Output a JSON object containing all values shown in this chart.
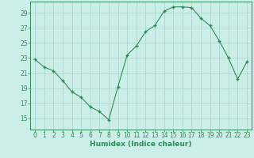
{
  "x": [
    0,
    1,
    2,
    3,
    4,
    5,
    6,
    7,
    8,
    9,
    10,
    11,
    12,
    13,
    14,
    15,
    16,
    17,
    18,
    19,
    20,
    21,
    22,
    23
  ],
  "y": [
    22.8,
    21.8,
    21.3,
    20.0,
    18.5,
    17.8,
    16.5,
    15.9,
    14.8,
    19.2,
    23.4,
    24.6,
    26.5,
    27.3,
    29.2,
    29.8,
    29.8,
    29.7,
    28.3,
    27.3,
    25.3,
    23.0,
    20.2,
    22.5
  ],
  "line_color": "#2e8b57",
  "marker_color": "#2e8b57",
  "bg_color": "#cceee8",
  "grid_color": "#b0d8d0",
  "xlabel": "Humidex (Indice chaleur)",
  "xlim": [
    -0.5,
    23.5
  ],
  "ylim": [
    13.5,
    30.5
  ],
  "yticks": [
    15,
    17,
    19,
    21,
    23,
    25,
    27,
    29
  ],
  "xticks": [
    0,
    1,
    2,
    3,
    4,
    5,
    6,
    7,
    8,
    9,
    10,
    11,
    12,
    13,
    14,
    15,
    16,
    17,
    18,
    19,
    20,
    21,
    22,
    23
  ],
  "tick_color": "#2e8b57",
  "axis_color": "#2e8b57",
  "label_fontsize": 6.5,
  "tick_fontsize": 5.5
}
